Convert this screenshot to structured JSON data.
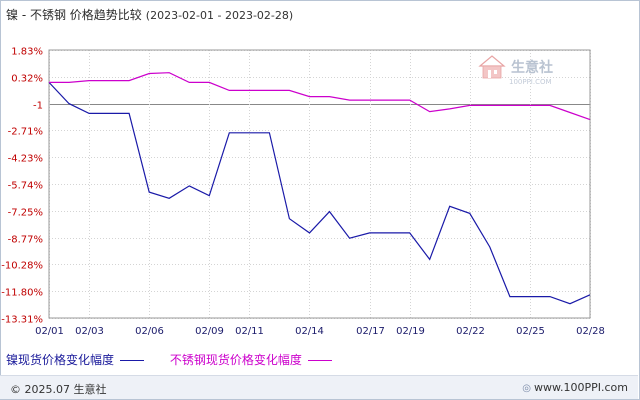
{
  "title": {
    "main": "镍 - 不锈钢 价格趋势比较",
    "range": "(2023-02-01 - 2023-02-28)"
  },
  "watermark": {
    "name": "生意社",
    "url": "100PPI.COM"
  },
  "chart_data": {
    "type": "line",
    "y_ticks": [
      "1.83%",
      "0.32%",
      "-1",
      "-2.71%",
      "-4.23%",
      "-5.74%",
      "-7.25%",
      "-8.77%",
      "-10.28%",
      "-11.80%",
      "-13.31%"
    ],
    "y_tick_values": [
      1.83,
      0.32,
      -1.2,
      -2.71,
      -4.23,
      -5.74,
      -7.25,
      -8.77,
      -10.28,
      -11.8,
      -13.31
    ],
    "ylim": [
      -13.31,
      1.83
    ],
    "x_ticks": [
      "02/01",
      "02/03",
      "02/06",
      "02/09",
      "02/11",
      "02/14",
      "02/17",
      "02/19",
      "02/22",
      "02/25",
      "02/28"
    ],
    "x_tick_days": [
      1,
      3,
      6,
      9,
      11,
      14,
      17,
      19,
      22,
      25,
      28
    ],
    "xlim_days": [
      1,
      28
    ],
    "grid": true,
    "legend_position": "bottom",
    "series": [
      {
        "name": "镍现货价格变化幅度",
        "color": "#1a1aa8",
        "x_days": [
          1,
          2,
          3,
          4,
          5,
          6,
          7,
          8,
          9,
          10,
          11,
          12,
          13,
          14,
          15,
          16,
          17,
          18,
          19,
          20,
          21,
          22,
          23,
          24,
          25,
          26,
          27,
          28
        ],
        "values": [
          0.0,
          -1.2,
          -1.75,
          -1.75,
          -1.75,
          -6.2,
          -6.55,
          -5.85,
          -6.4,
          -2.85,
          -2.85,
          -2.85,
          -7.7,
          -8.5,
          -7.3,
          -8.8,
          -8.5,
          -8.5,
          -8.5,
          -10.0,
          -7.0,
          -7.4,
          -9.3,
          -12.1,
          -12.1,
          -12.1,
          -12.5,
          -12.0
        ]
      },
      {
        "name": "不锈钢现货价格变化幅度",
        "color": "#cc00cc",
        "x_days": [
          1,
          2,
          3,
          4,
          5,
          6,
          7,
          8,
          9,
          10,
          11,
          12,
          13,
          14,
          15,
          16,
          17,
          18,
          19,
          20,
          21,
          22,
          23,
          24,
          25,
          26,
          27,
          28
        ],
        "values": [
          0.0,
          0.0,
          0.1,
          0.1,
          0.1,
          0.5,
          0.55,
          0.0,
          0.0,
          -0.45,
          -0.45,
          -0.45,
          -0.45,
          -0.8,
          -0.8,
          -1.0,
          -1.0,
          -1.0,
          -1.0,
          -1.65,
          -1.5,
          -1.3,
          -1.3,
          -1.3,
          -1.3,
          -1.3,
          -1.7,
          -2.1
        ]
      }
    ]
  },
  "footer": {
    "copyright": "© 2025.07 生意社",
    "site": "www.100PPI.com"
  }
}
